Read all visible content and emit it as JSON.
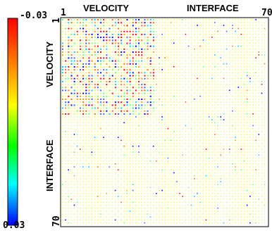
{
  "chart_data": {
    "type": "heatmap",
    "top_labels": [
      "VELOCITY",
      "INTERFACE"
    ],
    "left_labels": [
      "VELOCITY",
      "INTERFACE"
    ],
    "axis_start_label": "1",
    "axis_end_label": "70",
    "grid_size": 70,
    "colorbar": {
      "max_label": "-0.03",
      "min_label": "0.03",
      "range": [
        -0.03,
        0.03
      ],
      "colors": [
        "#ff0000",
        "#ff8000",
        "#ffff00",
        "#00ff00",
        "#00ffff",
        "#0000ff"
      ]
    }
  }
}
